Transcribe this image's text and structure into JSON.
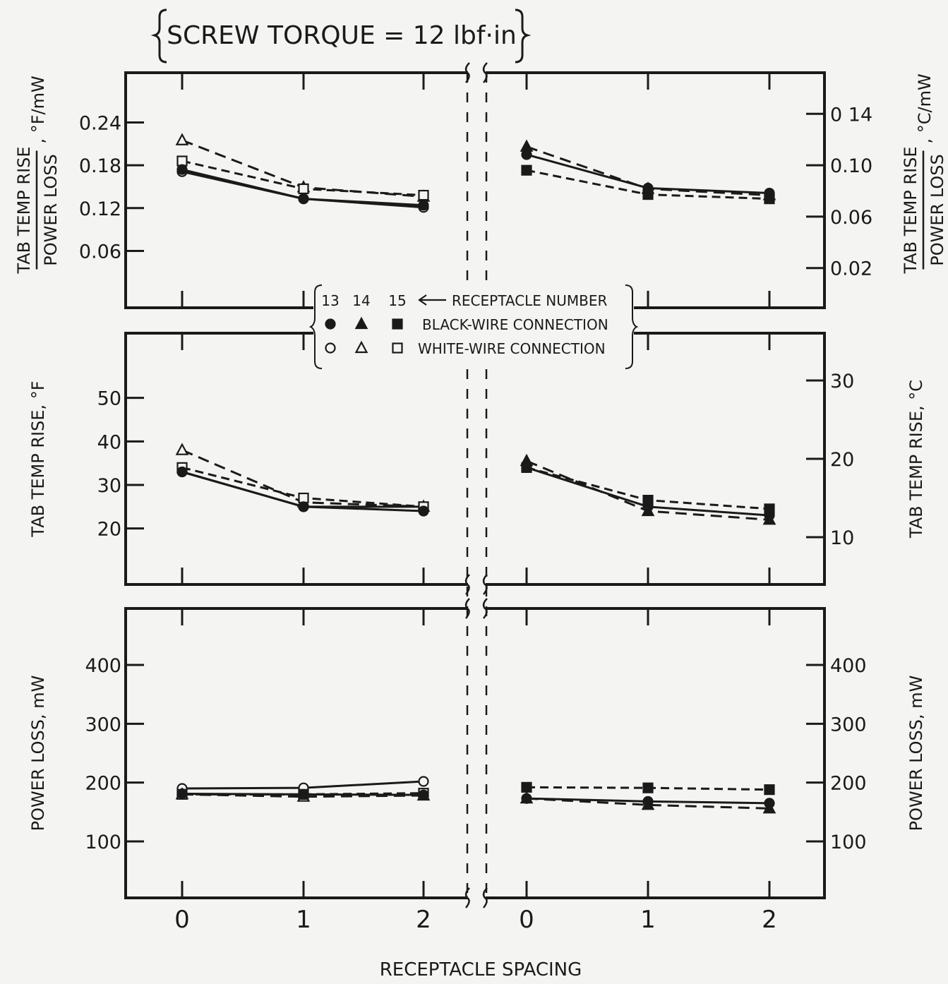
{
  "title": "SCREW TORQUE = 12 lbf·in",
  "xlabel": "RECEPTACLE SPACING",
  "legend": {
    "header_numbers": [
      "13",
      "14",
      "15"
    ],
    "header_label": "RECEPTACLE NUMBER",
    "black_label": "BLACK-WIRE CONNECTION",
    "white_label": "WHITE-WIRE CONNECTION"
  },
  "colors": {
    "ink": "#1a1a1a",
    "background": "#f4f4f2"
  },
  "chart_data": [
    {
      "type": "line",
      "panel": "top",
      "ylabel_left": "TAB TEMP RISE / POWER LOSS , °F/mW",
      "ylabel_right": "TAB TEMP RISE / POWER LOSS , °C/mW",
      "ylim": [
        0.01,
        0.28
      ],
      "yticks_left": [
        "0.24",
        "0.18",
        "0.12",
        "0.06"
      ],
      "yticks_left_values": [
        0.24,
        0.18,
        0.12,
        0.06
      ],
      "yticks_right": [
        "0 14",
        "0.10",
        "0.06",
        "0.02"
      ],
      "yticks_right_values": [
        0.252,
        0.18,
        0.108,
        0.036
      ],
      "x_categories": [
        "0",
        "1",
        "2"
      ],
      "left": [
        {
          "receptacle": "13",
          "wire": "white",
          "values": [
            0.171,
            0.133,
            0.121
          ]
        },
        {
          "receptacle": "14",
          "wire": "white",
          "values": [
            0.215,
            0.149,
            0.136
          ]
        },
        {
          "receptacle": "15",
          "wire": "white",
          "values": [
            0.186,
            0.147,
            0.138
          ]
        },
        {
          "receptacle": "13",
          "wire": "black",
          "values": [
            0.174,
            0.133,
            0.124
          ]
        }
      ],
      "right": [
        {
          "receptacle": "13",
          "wire": "black",
          "values": [
            0.195,
            0.148,
            0.141
          ]
        },
        {
          "receptacle": "14",
          "wire": "black",
          "values": [
            0.206,
            0.147,
            0.138
          ]
        },
        {
          "receptacle": "15",
          "wire": "black",
          "values": [
            0.173,
            0.139,
            0.133
          ]
        }
      ]
    },
    {
      "type": "line",
      "panel": "middle",
      "ylabel_left": "TAB TEMP RISE, °F",
      "ylabel_right": "TAB TEMP RISE, °C",
      "ylim": [
        12,
        60
      ],
      "yticks_left": [
        "50",
        "40",
        "30",
        "20"
      ],
      "yticks_left_values": [
        50,
        40,
        30,
        20
      ],
      "yticks_right": [
        "30",
        "20",
        "10"
      ],
      "yticks_right_values": [
        54,
        36,
        18
      ],
      "x_categories": [
        "0",
        "1",
        "2"
      ],
      "left": [
        {
          "receptacle": "13",
          "wire": "white",
          "values": [
            33,
            25,
            25
          ]
        },
        {
          "receptacle": "14",
          "wire": "white",
          "values": [
            38,
            26,
            25
          ]
        },
        {
          "receptacle": "15",
          "wire": "white",
          "values": [
            34,
            27,
            25
          ]
        },
        {
          "receptacle": "13",
          "wire": "black",
          "values": [
            33,
            25,
            24
          ]
        }
      ],
      "right": [
        {
          "receptacle": "13",
          "wire": "black",
          "values": [
            34,
            25,
            23
          ]
        },
        {
          "receptacle": "14",
          "wire": "black",
          "values": [
            35.5,
            24,
            22
          ]
        },
        {
          "receptacle": "15",
          "wire": "black",
          "values": [
            34,
            26.5,
            24.5
          ]
        }
      ]
    },
    {
      "type": "line",
      "panel": "bottom",
      "ylabel_left": "POWER LOSS, mW",
      "ylabel_right": "POWER LOSS, mW",
      "ylim": [
        40,
        460
      ],
      "yticks_left": [
        "400",
        "300",
        "200",
        "100"
      ],
      "yticks_left_values": [
        400,
        300,
        200,
        100
      ],
      "yticks_right": [
        "400",
        "300",
        "200",
        "100"
      ],
      "yticks_right_values": [
        400,
        300,
        200,
        100
      ],
      "x_categories": [
        "0",
        "1",
        "2"
      ],
      "left": [
        {
          "receptacle": "13",
          "wire": "white",
          "values": [
            190,
            191,
            202
          ]
        },
        {
          "receptacle": "14",
          "wire": "white",
          "values": [
            180,
            176,
            178
          ]
        },
        {
          "receptacle": "15",
          "wire": "white",
          "values": [
            180,
            180,
            182
          ]
        },
        {
          "receptacle": "13",
          "wire": "black",
          "values": [
            181,
            180,
            179
          ]
        }
      ],
      "right": [
        {
          "receptacle": "13",
          "wire": "black",
          "values": [
            173,
            168,
            165
          ]
        },
        {
          "receptacle": "14",
          "wire": "black",
          "values": [
            173,
            162,
            156
          ]
        },
        {
          "receptacle": "15",
          "wire": "black",
          "values": [
            192,
            191,
            188
          ]
        }
      ]
    }
  ]
}
